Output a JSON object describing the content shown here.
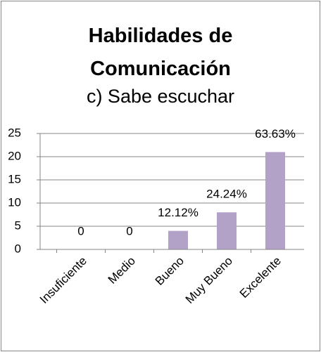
{
  "chart_data": {
    "type": "bar",
    "title": "Habilidades de Comunicación",
    "subtitle": "c) Sabe escuchar",
    "categories": [
      "Insuficiente",
      "Medio",
      "Bueno",
      "Muy Bueno",
      "Excelente"
    ],
    "values": [
      0,
      0,
      4,
      8,
      21
    ],
    "value_labels": [
      "0",
      "0",
      "12.12%",
      "24.24%",
      "63.63%"
    ],
    "color": "#b3a2c7",
    "ylim": [
      0,
      25
    ],
    "yticks": [
      0,
      5,
      10,
      15,
      20,
      25
    ],
    "grid": true
  }
}
